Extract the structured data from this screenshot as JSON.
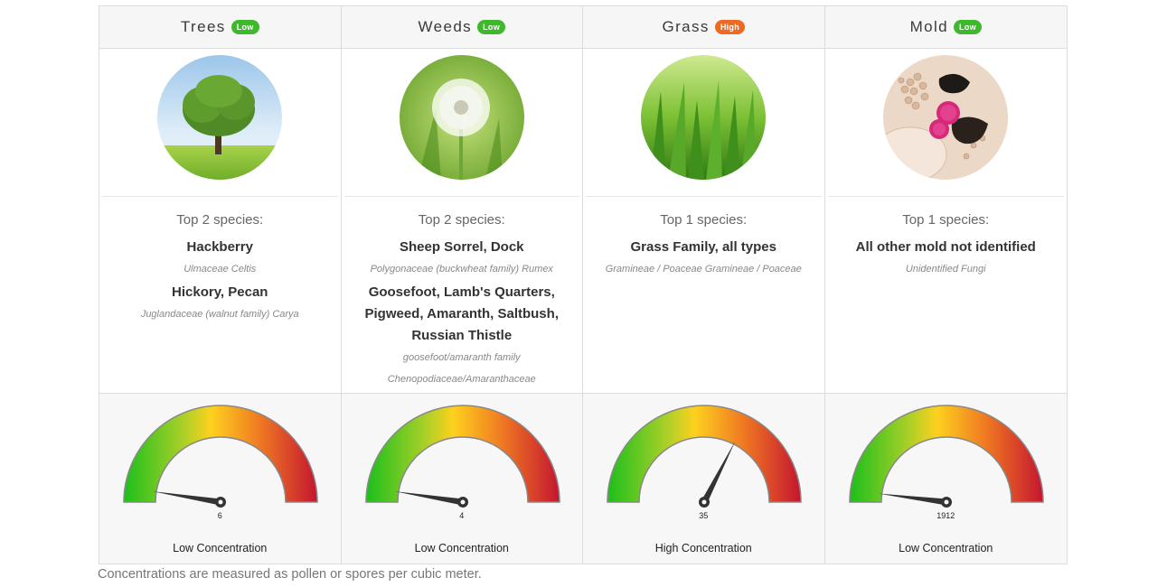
{
  "categories": [
    {
      "name": "Trees",
      "badge": "Low",
      "badge_color": "#3fb82e",
      "image_icon": "tree-photo",
      "top_label": "Top 2 species:",
      "species": [
        {
          "name": "Hackberry",
          "latin": "Ulmaceae Celtis"
        },
        {
          "name": "Hickory, Pecan",
          "latin": "Juglandaceae (walnut family) Carya"
        }
      ],
      "gauge_value": "6",
      "gauge_level": 0.05,
      "concentration_label": "Low Concentration"
    },
    {
      "name": "Weeds",
      "badge": "Low",
      "badge_color": "#3fb82e",
      "image_icon": "dandelion-photo",
      "top_label": "Top 2 species:",
      "species": [
        {
          "name": "Sheep Sorrel, Dock",
          "latin": "Polygonaceae (buckwheat family) Rumex"
        },
        {
          "name": "Goosefoot, Lamb's Quarters, Pigweed, Amaranth, Saltbush, Russian Thistle",
          "latin": "goosefoot/amaranth family Chenopodiaceae/Amaranthaceae"
        }
      ],
      "gauge_value": "4",
      "gauge_level": 0.05,
      "concentration_label": "Low Concentration"
    },
    {
      "name": "Grass",
      "badge": "High",
      "badge_color": "#ee6a22",
      "image_icon": "grass-photo",
      "top_label": "Top 1 species:",
      "species": [
        {
          "name": "Grass Family, all types",
          "latin": "Gramineae / Poaceae Gramineae / Poaceae"
        }
      ],
      "gauge_value": "35",
      "gauge_level": 0.65,
      "concentration_label": "High Concentration"
    },
    {
      "name": "Mold",
      "badge": "Low",
      "badge_color": "#3fb82e",
      "image_icon": "mold-photo",
      "top_label": "Top 1 species:",
      "species": [
        {
          "name": "All other mold not identified",
          "latin": "Unidentified Fungi"
        }
      ],
      "gauge_value": "1912",
      "gauge_level": 0.04,
      "concentration_label": "Low Concentration"
    }
  ],
  "footnote": "Concentrations are measured as pollen or spores per cubic meter."
}
